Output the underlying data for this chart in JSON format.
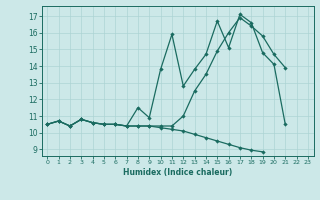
{
  "xlabel": "Humidex (Indice chaleur)",
  "xlim": [
    -0.5,
    23.5
  ],
  "ylim": [
    8.6,
    17.6
  ],
  "xticks": [
    0,
    1,
    2,
    3,
    4,
    5,
    6,
    7,
    8,
    9,
    10,
    11,
    12,
    13,
    14,
    15,
    16,
    17,
    18,
    19,
    20,
    21,
    22,
    23
  ],
  "yticks": [
    9,
    10,
    11,
    12,
    13,
    14,
    15,
    16,
    17
  ],
  "bg_color": "#cce8e8",
  "line_color": "#1a6b60",
  "grid_color": "#add4d4",
  "series1_x": [
    0,
    1,
    2,
    3,
    4,
    5,
    6,
    7,
    8,
    9,
    10,
    11,
    12,
    13,
    14,
    15,
    16,
    17,
    18,
    19,
    20,
    21
  ],
  "series1_y": [
    10.5,
    10.7,
    10.4,
    10.8,
    10.6,
    10.5,
    10.5,
    10.4,
    11.5,
    10.9,
    13.8,
    15.9,
    12.8,
    13.8,
    14.7,
    16.7,
    15.1,
    17.1,
    16.6,
    14.8,
    14.1,
    10.5
  ],
  "series2_x": [
    0,
    1,
    2,
    3,
    4,
    5,
    6,
    7,
    8,
    9,
    10,
    11,
    12,
    13,
    14,
    15,
    16,
    17,
    18,
    19,
    20,
    21
  ],
  "series2_y": [
    10.5,
    10.7,
    10.4,
    10.8,
    10.6,
    10.5,
    10.5,
    10.4,
    10.4,
    10.4,
    10.4,
    10.4,
    11.0,
    12.5,
    13.5,
    14.9,
    16.0,
    16.9,
    16.4,
    15.8,
    14.7,
    13.9
  ],
  "series3_x": [
    0,
    1,
    2,
    3,
    4,
    5,
    6,
    7,
    8,
    9,
    10,
    11,
    12,
    13,
    14,
    15,
    16,
    17,
    18,
    19
  ],
  "series3_y": [
    10.5,
    10.7,
    10.4,
    10.8,
    10.6,
    10.5,
    10.5,
    10.4,
    10.4,
    10.4,
    10.3,
    10.2,
    10.1,
    9.9,
    9.7,
    9.5,
    9.3,
    9.1,
    8.95,
    8.85
  ]
}
